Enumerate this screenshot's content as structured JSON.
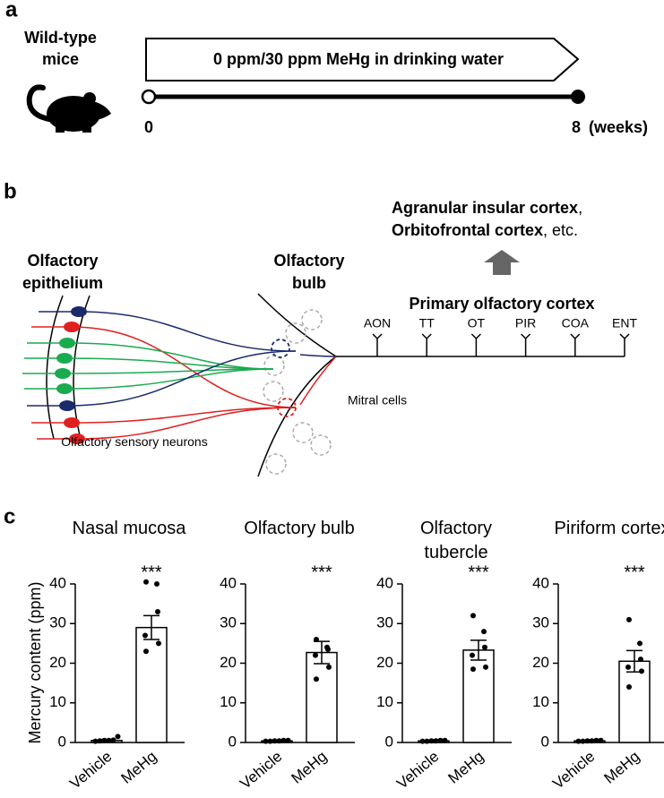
{
  "panel_a": {
    "label": "a",
    "subject": "Wild-type mice",
    "treatment": "0 ppm/30 ppm MeHg in drinking water",
    "start": "0",
    "end": "8",
    "unit": "(weeks)"
  },
  "panel_b": {
    "label": "b",
    "targets": [
      "Agranular insular cortex",
      ",",
      "Orbitofrontal cortex",
      ", etc."
    ],
    "primary": "Primary olfactory cortex",
    "epithelium": "Olfactory epithelium",
    "bulb": "Olfactory bulb",
    "regions": [
      "AON",
      "TT",
      "OT",
      "PIR",
      "COA",
      "ENT"
    ],
    "mitral": "Mitral cells",
    "neurons": "Olfactory sensory neurons"
  },
  "panel_c": {
    "label": "c",
    "ylabel": "Mercury content (ppm)"
  },
  "chart_data": [
    {
      "type": "bar",
      "title": "Nasal mucosa",
      "categories": [
        "Vehicle",
        "MeHg"
      ],
      "values": [
        0.5,
        29
      ],
      "errors": [
        0.2,
        3
      ],
      "points": [
        [
          0.3,
          0.4,
          0.5,
          0.5,
          0.6,
          1.5
        ],
        [
          40.5,
          40,
          33,
          27,
          25,
          23
        ]
      ],
      "annotation": "***",
      "ylim": [
        0,
        40
      ],
      "yticks": [
        0,
        10,
        20,
        30,
        40
      ]
    },
    {
      "type": "bar",
      "title": "Olfactory bulb",
      "categories": [
        "Vehicle",
        "MeHg"
      ],
      "values": [
        0.4,
        22.7
      ],
      "errors": [
        0.1,
        2.8
      ],
      "points": [
        [
          0.3,
          0.3,
          0.4,
          0.4,
          0.5,
          0.5
        ],
        [
          26,
          24,
          23.5,
          22,
          19,
          16
        ]
      ],
      "annotation": "***",
      "ylim": [
        0,
        40
      ],
      "yticks": [
        0,
        10,
        20,
        30,
        40
      ]
    },
    {
      "type": "bar",
      "title": "Olfactory tubercle",
      "categories": [
        "Vehicle",
        "MeHg"
      ],
      "values": [
        0.4,
        23.3
      ],
      "errors": [
        0.1,
        2.5
      ],
      "points": [
        [
          0.3,
          0.3,
          0.4,
          0.4,
          0.5,
          0.5
        ],
        [
          32,
          28,
          24,
          22,
          19,
          18.5
        ]
      ],
      "annotation": "***",
      "ylim": [
        0,
        40
      ],
      "yticks": [
        0,
        10,
        20,
        30,
        40
      ]
    },
    {
      "type": "bar",
      "title": "Piriform cortex",
      "categories": [
        "Vehicle",
        "MeHg"
      ],
      "values": [
        0.4,
        20.5
      ],
      "errors": [
        0.1,
        2.7
      ],
      "points": [
        [
          0.3,
          0.3,
          0.4,
          0.4,
          0.5,
          0.5
        ],
        [
          31,
          25,
          21,
          19,
          18,
          14
        ]
      ],
      "annotation": "***",
      "ylim": [
        0,
        40
      ],
      "yticks": [
        0,
        10,
        20,
        30,
        40
      ]
    }
  ]
}
